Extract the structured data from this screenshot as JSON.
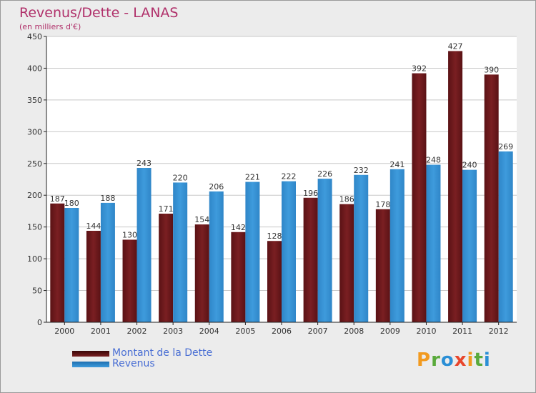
{
  "title": "Revenus/Dette - LANAS",
  "subtitle": "(en milliers d'€)",
  "logo": {
    "text": "Proxiti",
    "colors": [
      "#f29a1f",
      "#5aaa3c",
      "#2b8fd6",
      "#e8462c",
      "#f29a1f",
      "#5aaa3c",
      "#2b8fd6"
    ]
  },
  "legend": {
    "debt_label": "Montant de la Dette",
    "revenue_label": "Revenus"
  },
  "colors": {
    "debt": "#7a1f22",
    "revenue": "#3e9bdc",
    "grid": "#c8c8c8",
    "axis": "#222222"
  },
  "chart_data": {
    "type": "bar",
    "categories": [
      "2000",
      "2001",
      "2002",
      "2003",
      "2004",
      "2005",
      "2006",
      "2007",
      "2008",
      "2009",
      "2010",
      "2011",
      "2012"
    ],
    "series": [
      {
        "name": "Montant de la Dette",
        "values": [
          187,
          144,
          130,
          171,
          154,
          142,
          128,
          196,
          186,
          178,
          392,
          427,
          390
        ]
      },
      {
        "name": "Revenus",
        "values": [
          180,
          188,
          243,
          220,
          206,
          221,
          222,
          226,
          232,
          241,
          248,
          240,
          269
        ]
      }
    ],
    "ylim": [
      0,
      450
    ],
    "yticks": [
      0,
      50,
      100,
      150,
      200,
      250,
      300,
      350,
      400,
      450
    ],
    "grid": true,
    "legend_position": "bottom-left"
  }
}
